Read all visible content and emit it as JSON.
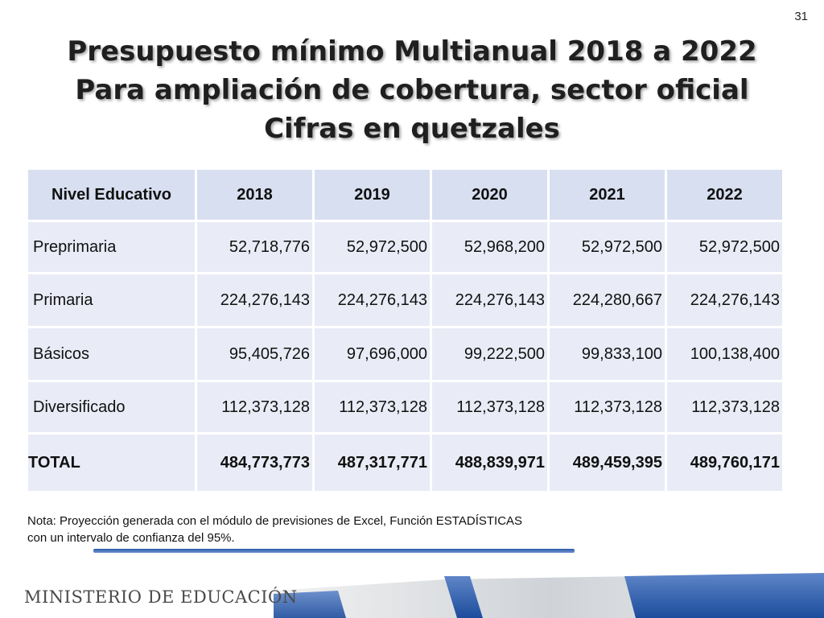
{
  "slide_number": "31",
  "title_lines": [
    "Presupuesto mínimo Multianual 2018 a 2022",
    "Para ampliación de cobertura, sector oficial",
    "Cifras en quetzales"
  ],
  "table": {
    "headers": [
      "Nivel Educativo",
      "2018",
      "2019",
      "2020",
      "2021",
      "2022"
    ],
    "rows": [
      [
        "Preprimaria",
        "52,718,776",
        "52,972,500",
        "52,968,200",
        "52,972,500",
        "52,972,500"
      ],
      [
        "Primaria",
        "224,276,143",
        "224,276,143",
        "224,276,143",
        "224,280,667",
        "224,276,143"
      ],
      [
        "Básicos",
        "95,405,726",
        "97,696,000",
        "99,222,500",
        "99,833,100",
        "100,138,400"
      ],
      [
        "Diversificado",
        "112,373,128",
        "112,373,128",
        "112,373,128",
        "112,373,128",
        "112,373,128"
      ]
    ],
    "total": [
      "TOTAL",
      "484,773,773",
      "487,317,771",
      "488,839,971",
      "489,459,395",
      "489,760,171"
    ]
  },
  "note_lines": [
    "Nota: Proyección generada con el módulo de previsiones de Excel, Función ESTADÍSTICAS",
    "con un intervalo de confianza del 95%."
  ],
  "footer_logo": "MINISTERIO DE EDUCACIÓN",
  "colors": {
    "header_cell": "#d8dff0",
    "body_cell": "#e9ecf6",
    "accent_blue": "#2b5aa8"
  }
}
